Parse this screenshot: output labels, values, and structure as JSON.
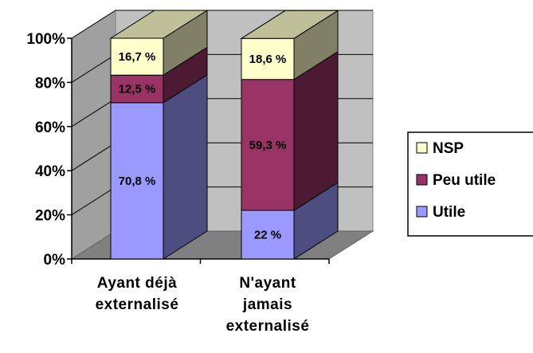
{
  "chart_data": {
    "type": "bar",
    "stacked": true,
    "percent_stacked": true,
    "three_d": true,
    "categories": [
      [
        "Ayant déjà",
        "externalisé"
      ],
      [
        "N'ayant",
        "jamais",
        "externalisé"
      ]
    ],
    "series": [
      {
        "name": "Utile",
        "values": [
          70.8,
          22.0
        ],
        "labels": [
          "70,8 %",
          "22 %"
        ],
        "color": "#9999ff"
      },
      {
        "name": "Peu utile",
        "values": [
          12.5,
          59.3
        ],
        "labels": [
          "12,5 %",
          "59,3 %"
        ],
        "color": "#993366"
      },
      {
        "name": "NSP",
        "values": [
          16.7,
          18.6
        ],
        "labels": [
          "16,7 %",
          "18,6 %"
        ],
        "color": "#ffffcc"
      }
    ],
    "ylim": [
      0,
      100
    ],
    "yticks": [
      "0%",
      "20%",
      "40%",
      "60%",
      "80%",
      "100%"
    ],
    "grid": true,
    "legend_position": "right",
    "legend_order": [
      "NSP",
      "Peu utile",
      "Utile"
    ],
    "title": "",
    "xlabel": "",
    "ylabel": ""
  }
}
